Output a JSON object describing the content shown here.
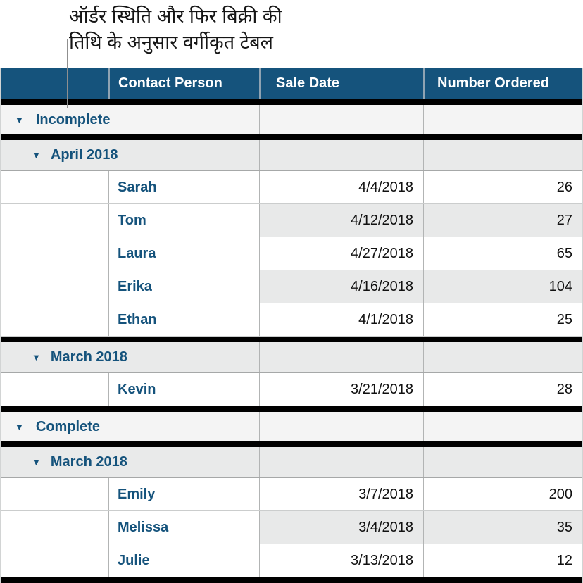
{
  "callout": {
    "line1": "ऑर्डर स्थिति और फिर बिक्री की",
    "line2": "तिथि के अनुसार वर्गीकृत टेबल"
  },
  "icons": {
    "disclosure": "▼"
  },
  "table": {
    "columns": [
      "Contact Person",
      "Sale Date",
      "Number Ordered"
    ],
    "groups": [
      {
        "label": "Incomplete",
        "subgroups": [
          {
            "label": "April 2018",
            "rows": [
              {
                "name": "Sarah",
                "date": "4/4/2018",
                "qty": "26"
              },
              {
                "name": "Tom",
                "date": "4/12/2018",
                "qty": "27"
              },
              {
                "name": "Laura",
                "date": "4/27/2018",
                "qty": "65"
              },
              {
                "name": "Erika",
                "date": "4/16/2018",
                "qty": "104"
              },
              {
                "name": "Ethan",
                "date": "4/1/2018",
                "qty": "25"
              }
            ]
          },
          {
            "label": "March 2018",
            "rows": [
              {
                "name": "Kevin",
                "date": "3/21/2018",
                "qty": "28"
              }
            ]
          }
        ]
      },
      {
        "label": "Complete",
        "subgroups": [
          {
            "label": "March 2018",
            "rows": [
              {
                "name": "Emily",
                "date": "3/7/2018",
                "qty": "200"
              },
              {
                "name": "Melissa",
                "date": "3/4/2018",
                "qty": "35"
              },
              {
                "name": "Julie",
                "date": "3/13/2018",
                "qty": "12"
              }
            ]
          }
        ]
      }
    ]
  },
  "colors": {
    "header_bg": "#15537C",
    "accent_text": "#15537C",
    "stripe": "#E8E9E9",
    "status_row_bg": "#F4F4F4",
    "month_row_bg": "#E9EAEA",
    "divider": "#000000",
    "callout_line": "#8F8F8F"
  }
}
